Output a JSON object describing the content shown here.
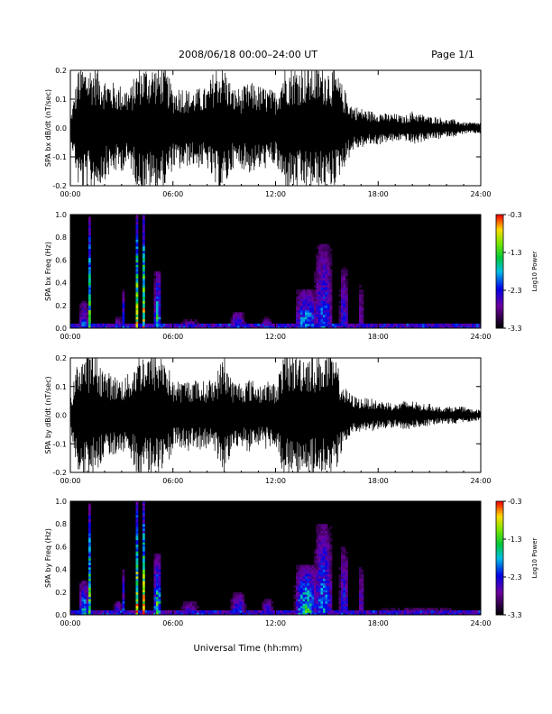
{
  "header": {
    "title": "2008/06/18   00:00–24:00 UT",
    "page": "Page 1/1"
  },
  "chart_data": [
    {
      "type": "line",
      "panel": "bx-waveform",
      "ylabel": "SPA bx dB/dt (nT/sec)",
      "xlim": [
        0,
        24
      ],
      "ylim": [
        -0.2,
        0.2
      ],
      "x_tick_labels": [
        "00:00",
        "06:00",
        "12:00",
        "18:00",
        "24:00"
      ],
      "y_tick_labels": [
        "-0.2",
        "-0.1",
        "0.0",
        "0.1",
        "0.2"
      ],
      "envelope": {
        "x_hours": [
          0,
          0.5,
          1,
          1.5,
          2,
          2.5,
          3,
          3.5,
          4,
          4.5,
          5,
          5.5,
          6,
          6.5,
          7,
          7.5,
          8,
          8.5,
          9,
          9.5,
          10,
          10.5,
          11,
          11.5,
          12,
          12.5,
          13,
          13.5,
          14,
          14.5,
          15,
          15.5,
          16,
          16.5,
          17,
          17.5,
          18,
          18.5,
          19,
          19.5,
          20,
          20.5,
          21,
          21.5,
          22,
          22.5,
          23,
          23.5,
          24
        ],
        "amplitude": [
          0.03,
          0.22,
          0.22,
          0.22,
          0.18,
          0.16,
          0.15,
          0.14,
          0.22,
          0.22,
          0.22,
          0.22,
          0.14,
          0.15,
          0.13,
          0.14,
          0.14,
          0.22,
          0.22,
          0.14,
          0.14,
          0.16,
          0.15,
          0.14,
          0.13,
          0.22,
          0.22,
          0.22,
          0.22,
          0.22,
          0.22,
          0.2,
          0.14,
          0.08,
          0.07,
          0.06,
          0.06,
          0.05,
          0.05,
          0.04,
          0.06,
          0.05,
          0.04,
          0.04,
          0.03,
          0.03,
          0.02,
          0.02,
          0.02
        ]
      }
    },
    {
      "type": "heatmap",
      "panel": "bx-spectrogram",
      "ylabel": "SPA bx Freq (Hz)",
      "xlim": [
        0,
        24
      ],
      "ylim": [
        0,
        1.0
      ],
      "x_tick_labels": [
        "00:00",
        "06:00",
        "12:00",
        "18:00",
        "24:00"
      ],
      "y_tick_labels": [
        "0.0",
        "0.2",
        "0.4",
        "0.6",
        "0.8",
        "1.0"
      ],
      "colorbar": {
        "label": "Log10 Power",
        "range": [
          -3.3,
          -0.3
        ],
        "tick_labels": [
          "-3.3",
          "-2.3",
          "-1.3",
          "-0.3"
        ]
      },
      "activity": [
        {
          "center_hours": 1.1,
          "width_hours": 0.12,
          "height_hz": 0.98,
          "strength": 0.9
        },
        {
          "center_hours": 0.8,
          "width_hours": 0.6,
          "height_hz": 0.25,
          "strength": 0.5
        },
        {
          "center_hours": 2.8,
          "width_hours": 0.5,
          "height_hz": 0.1,
          "strength": 0.4
        },
        {
          "center_hours": 3.1,
          "width_hours": 0.1,
          "height_hz": 0.35,
          "strength": 0.5
        },
        {
          "center_hours": 3.9,
          "width_hours": 0.1,
          "height_hz": 1.0,
          "strength": 1.0
        },
        {
          "center_hours": 4.3,
          "width_hours": 0.1,
          "height_hz": 1.0,
          "strength": 1.0
        },
        {
          "center_hours": 5.1,
          "width_hours": 0.45,
          "height_hz": 0.5,
          "strength": 0.7
        },
        {
          "center_hours": 7.0,
          "width_hours": 1.2,
          "height_hz": 0.08,
          "strength": 0.35
        },
        {
          "center_hours": 9.8,
          "width_hours": 1.0,
          "height_hz": 0.15,
          "strength": 0.45
        },
        {
          "center_hours": 11.5,
          "width_hours": 0.8,
          "height_hz": 0.1,
          "strength": 0.35
        },
        {
          "center_hours": 13.8,
          "width_hours": 1.5,
          "height_hz": 0.35,
          "strength": 0.6
        },
        {
          "center_hours": 14.8,
          "width_hours": 1.2,
          "height_hz": 0.75,
          "strength": 0.5
        },
        {
          "center_hours": 16.0,
          "width_hours": 0.6,
          "height_hz": 0.55,
          "strength": 0.4
        },
        {
          "center_hours": 17.0,
          "width_hours": 0.4,
          "height_hz": 0.4,
          "strength": 0.3
        },
        {
          "center_hours": 20.5,
          "width_hours": 6.0,
          "height_hz": 0.05,
          "strength": 0.25
        }
      ]
    },
    {
      "type": "line",
      "panel": "by-waveform",
      "ylabel": "SPA by dB/dt (nT/sec)",
      "xlim": [
        0,
        24
      ],
      "ylim": [
        -0.2,
        0.2
      ],
      "x_tick_labels": [
        "00:00",
        "06:00",
        "12:00",
        "18:00",
        "24:00"
      ],
      "y_tick_labels": [
        "-0.2",
        "-0.1",
        "0.0",
        "0.1",
        "0.2"
      ],
      "envelope": {
        "x_hours": [
          0,
          0.5,
          1,
          1.5,
          2,
          2.5,
          3,
          3.5,
          4,
          4.5,
          5,
          5.5,
          6,
          6.5,
          7,
          7.5,
          8,
          8.5,
          9,
          9.5,
          10,
          10.5,
          11,
          11.5,
          12,
          12.5,
          13,
          13.5,
          14,
          14.5,
          15,
          15.5,
          16,
          16.5,
          17,
          17.5,
          18,
          18.5,
          19,
          19.5,
          20,
          20.5,
          21,
          21.5,
          22,
          22.5,
          23,
          23.5,
          24
        ],
        "amplitude": [
          0.05,
          0.22,
          0.22,
          0.22,
          0.16,
          0.14,
          0.13,
          0.15,
          0.22,
          0.22,
          0.22,
          0.22,
          0.12,
          0.12,
          0.13,
          0.12,
          0.12,
          0.14,
          0.22,
          0.12,
          0.12,
          0.13,
          0.11,
          0.12,
          0.11,
          0.22,
          0.22,
          0.22,
          0.22,
          0.22,
          0.22,
          0.2,
          0.1,
          0.07,
          0.06,
          0.06,
          0.05,
          0.05,
          0.04,
          0.05,
          0.05,
          0.04,
          0.04,
          0.03,
          0.03,
          0.03,
          0.03,
          0.02,
          0.02
        ]
      }
    },
    {
      "type": "heatmap",
      "panel": "by-spectrogram",
      "ylabel": "SPA by Freq (Hz)",
      "xlim": [
        0,
        24
      ],
      "ylim": [
        0,
        1.0
      ],
      "x_tick_labels": [
        "00:00",
        "06:00",
        "12:00",
        "18:00",
        "24:00"
      ],
      "y_tick_labels": [
        "0.0",
        "0.2",
        "0.4",
        "0.6",
        "0.8",
        "1.0"
      ],
      "colorbar": {
        "label": "Log10 Power",
        "range": [
          -3.3,
          -0.3
        ],
        "tick_labels": [
          "-3.3",
          "-2.3",
          "-1.3",
          "-0.3"
        ]
      },
      "activity": [
        {
          "center_hours": 1.1,
          "width_hours": 0.12,
          "height_hz": 0.98,
          "strength": 0.9
        },
        {
          "center_hours": 0.8,
          "width_hours": 0.7,
          "height_hz": 0.3,
          "strength": 0.6
        },
        {
          "center_hours": 2.8,
          "width_hours": 0.6,
          "height_hz": 0.12,
          "strength": 0.45
        },
        {
          "center_hours": 3.1,
          "width_hours": 0.1,
          "height_hz": 0.4,
          "strength": 0.5
        },
        {
          "center_hours": 3.9,
          "width_hours": 0.1,
          "height_hz": 1.0,
          "strength": 1.0
        },
        {
          "center_hours": 4.3,
          "width_hours": 0.1,
          "height_hz": 1.0,
          "strength": 1.0
        },
        {
          "center_hours": 5.1,
          "width_hours": 0.5,
          "height_hz": 0.55,
          "strength": 0.75
        },
        {
          "center_hours": 7.0,
          "width_hours": 1.2,
          "height_hz": 0.12,
          "strength": 0.4
        },
        {
          "center_hours": 9.8,
          "width_hours": 1.0,
          "height_hz": 0.2,
          "strength": 0.5
        },
        {
          "center_hours": 11.5,
          "width_hours": 0.8,
          "height_hz": 0.15,
          "strength": 0.4
        },
        {
          "center_hours": 13.8,
          "width_hours": 1.5,
          "height_hz": 0.45,
          "strength": 0.7
        },
        {
          "center_hours": 14.8,
          "width_hours": 1.2,
          "height_hz": 0.8,
          "strength": 0.55
        },
        {
          "center_hours": 16.0,
          "width_hours": 0.6,
          "height_hz": 0.6,
          "strength": 0.45
        },
        {
          "center_hours": 17.0,
          "width_hours": 0.4,
          "height_hz": 0.45,
          "strength": 0.35
        },
        {
          "center_hours": 20.5,
          "width_hours": 6.0,
          "height_hz": 0.07,
          "strength": 0.3
        }
      ]
    }
  ],
  "xlabel": "Universal Time (hh:mm)"
}
